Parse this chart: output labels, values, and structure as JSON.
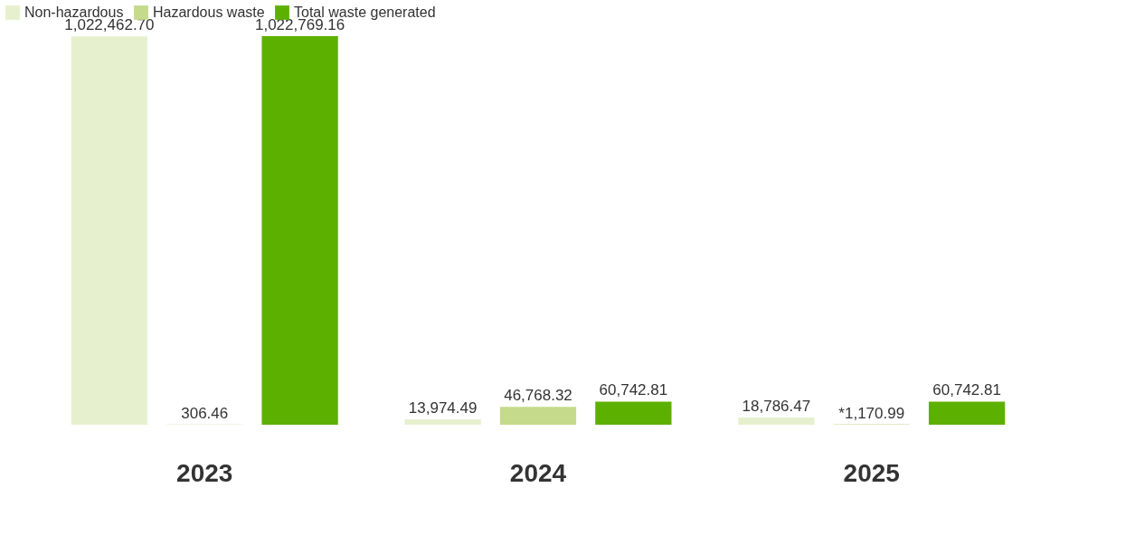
{
  "chart_data": {
    "type": "bar",
    "categories": [
      "2023",
      "2024",
      "2025"
    ],
    "legend": "top",
    "series": [
      {
        "name": "Non-hazardous",
        "color": "#e6f0cf",
        "values": [
          1022462.7,
          13974.49,
          18786.47
        ],
        "value_labels": [
          "1,022,462.70",
          "13,974.49",
          "18,786.47"
        ]
      },
      {
        "name": "Hazardous waste",
        "color": "#c5da8b",
        "values": [
          306.46,
          46768.32,
          1170.99
        ],
        "value_labels": [
          "306.46",
          "46,768.32",
          "*1,170.99"
        ]
      },
      {
        "name": "Total waste generated",
        "color": "#5cb000",
        "values": [
          1022769.16,
          60742.81,
          60742.81
        ],
        "value_labels": [
          "1,022,769.16",
          "60,742.81",
          "60,742.81"
        ]
      }
    ]
  }
}
